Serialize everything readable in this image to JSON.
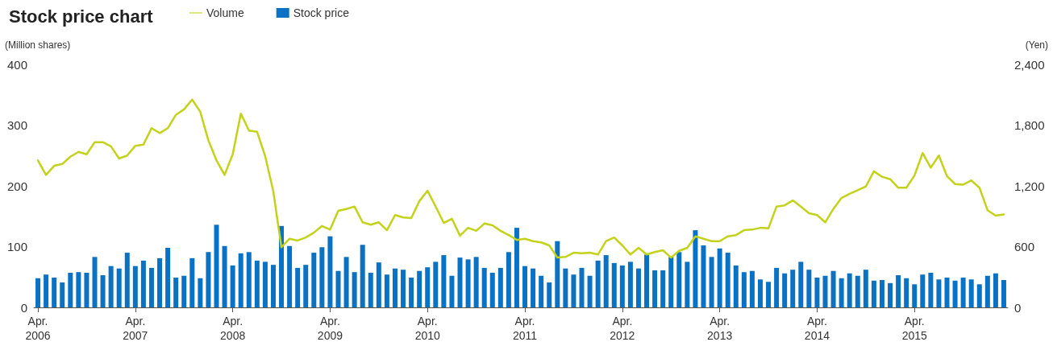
{
  "chart_data": {
    "type": "bar",
    "title": "Stock price chart",
    "ylabel": "(Million shares)",
    "y2label": "(Yen)",
    "categories": [
      "Apr.\n2006",
      null,
      null,
      null,
      null,
      null,
      null,
      null,
      null,
      null,
      null,
      null,
      "Apr.\n2007",
      null,
      null,
      null,
      null,
      null,
      null,
      null,
      null,
      null,
      null,
      null,
      "Apr.\n2008",
      null,
      null,
      null,
      null,
      null,
      null,
      null,
      null,
      null,
      null,
      null,
      "Apr.\n2009",
      null,
      null,
      null,
      null,
      null,
      null,
      null,
      null,
      null,
      null,
      null,
      "Apr.\n2010",
      null,
      null,
      null,
      null,
      null,
      null,
      null,
      null,
      null,
      null,
      null,
      "Apr.\n2011",
      null,
      null,
      null,
      null,
      null,
      null,
      null,
      null,
      null,
      null,
      null,
      "Apr.\n2012",
      null,
      null,
      null,
      null,
      null,
      null,
      null,
      null,
      null,
      null,
      null,
      "Apr.\n2013",
      null,
      null,
      null,
      null,
      null,
      null,
      null,
      null,
      null,
      null,
      null,
      "Apr.\n2014",
      null,
      null,
      null,
      null,
      null,
      null,
      null,
      null,
      null,
      null,
      null,
      "Apr.\n2015",
      null,
      null,
      null,
      null,
      null,
      null,
      null,
      null,
      null,
      null,
      null
    ],
    "series": [
      {
        "name": "Volume",
        "type": "line",
        "color": "#c3d21a",
        "values": [
          242,
          218,
          233,
          236,
          248,
          256,
          252,
          272,
          272,
          265,
          245,
          250,
          266,
          268,
          295,
          287,
          295,
          317,
          326,
          342,
          322,
          275,
          242,
          218,
          252,
          319,
          291,
          289,
          249,
          191,
          99,
          113,
          110,
          115,
          123,
          134,
          128,
          159,
          162,
          166,
          140,
          136,
          140,
          127,
          152,
          148,
          147,
          175,
          192,
          166,
          139,
          146,
          118,
          131,
          126,
          138,
          135,
          126,
          119,
          111,
          113,
          109,
          107,
          102,
          82,
          83,
          90,
          89,
          90,
          87,
          109,
          115,
          102,
          87,
          98,
          87,
          91,
          94,
          82,
          93,
          98,
          117,
          113,
          109,
          109,
          117,
          119,
          127,
          128,
          131,
          130,
          166,
          168,
          176,
          166,
          155,
          152,
          140,
          162,
          180,
          187,
          193,
          199,
          224,
          215,
          211,
          197,
          197,
          217,
          254,
          230,
          250,
          216,
          203,
          202,
          209,
          197,
          160,
          151,
          153
        ]
      },
      {
        "name": "Stock price",
        "color": "#0a72c4",
        "values": [
          48,
          54,
          49,
          41,
          57,
          58,
          57,
          83,
          53,
          68,
          64,
          90,
          68,
          77,
          65,
          81,
          98,
          49,
          52,
          81,
          48,
          91,
          136,
          101,
          69,
          89,
          91,
          77,
          75,
          70,
          134,
          101,
          65,
          70,
          90,
          99,
          117,
          60,
          83,
          58,
          103,
          57,
          74,
          54,
          64,
          62,
          49,
          60,
          66,
          75,
          86,
          52,
          82,
          79,
          83,
          65,
          57,
          65,
          91,
          131,
          68,
          64,
          52,
          41,
          109,
          64,
          54,
          65,
          52,
          77,
          86,
          73,
          69,
          75,
          64,
          87,
          61,
          61,
          83,
          91,
          75,
          127,
          102,
          83,
          97,
          90,
          69,
          58,
          60,
          46,
          42,
          65,
          56,
          62,
          75,
          62,
          49,
          52,
          60,
          48,
          56,
          52,
          62,
          44,
          45,
          40,
          53,
          48,
          38,
          54,
          57,
          46,
          49,
          44,
          49,
          46,
          38,
          52,
          56,
          45
        ]
      }
    ],
    "ylim": [
      0,
      400
    ],
    "yticks": [
      0,
      100,
      200,
      300,
      400
    ],
    "y2lim": [
      0,
      2400
    ],
    "y2ticks": [
      0,
      600,
      {
        "value": 1200,
        "label": "1,200"
      },
      {
        "value": 1800,
        "label": "1,800"
      },
      {
        "value": 2400,
        "label": "2,400"
      }
    ],
    "legend": "top",
    "marker": "none",
    "line_style": "solid"
  }
}
